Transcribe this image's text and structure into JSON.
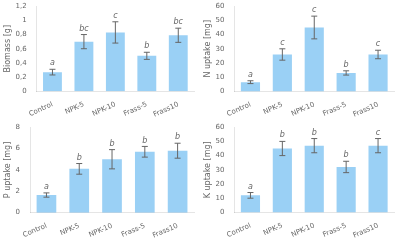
{
  "chart_data": [
    {
      "type": "bar",
      "categories": [
        "Control",
        "NPK-5",
        "NPK-10",
        "Frass-5",
        "Frass10"
      ],
      "values": [
        0.27,
        0.7,
        0.83,
        0.5,
        0.79
      ],
      "errors": [
        0.04,
        0.1,
        0.15,
        0.05,
        0.1
      ],
      "letters": [
        "a",
        "bc",
        "c",
        "b",
        "bc"
      ],
      "ylabel": "Biomass [g]",
      "ylim": [
        0,
        1.2
      ],
      "yticks": [
        0,
        {
          "value": 0.2,
          "label": "0,2"
        },
        {
          "value": 0.4,
          "label": "0,4"
        },
        {
          "value": 0.6,
          "label": "0,6"
        },
        {
          "value": 0.8,
          "label": "0,8"
        },
        1,
        {
          "value": 1.2,
          "label": "1,2"
        }
      ],
      "grid": false
    },
    {
      "type": "bar",
      "categories": [
        "Control",
        "NPK-5",
        "NPK-10",
        "Frass-5",
        "Frass10"
      ],
      "values": [
        6.5,
        26.0,
        45.0,
        13.0,
        26.0
      ],
      "errors": [
        1.0,
        4.0,
        8.0,
        1.5,
        3.0
      ],
      "letters": [
        "a",
        "c",
        "c",
        "b",
        "c"
      ],
      "ylabel": "N uptake [mg]",
      "ylim": [
        0,
        60
      ],
      "yticks": [
        0,
        10,
        20,
        30,
        40,
        50,
        60
      ],
      "grid": false
    },
    {
      "type": "bar",
      "categories": [
        "Control",
        "NPK-5",
        "NPK-10",
        "Frass-5",
        "Frass10"
      ],
      "values": [
        1.65,
        4.1,
        5.0,
        5.7,
        5.8
      ],
      "errors": [
        0.2,
        0.5,
        0.9,
        0.5,
        0.7
      ],
      "letters": [
        "a",
        "b",
        "b",
        "b",
        "b"
      ],
      "ylabel": "P uptake [mg]",
      "ylim": [
        0,
        8
      ],
      "yticks": [
        0,
        2,
        4,
        6,
        8
      ],
      "grid": false
    },
    {
      "type": "bar",
      "categories": [
        "Control",
        "NPK-5",
        "NPK-10",
        "Frass-5",
        "Frass10"
      ],
      "values": [
        12.0,
        45.0,
        47.0,
        32.0,
        47.0
      ],
      "errors": [
        2.0,
        5.0,
        5.0,
        4.0,
        5.0
      ],
      "letters": [
        "a",
        "b",
        "b",
        "b",
        "c"
      ],
      "ylabel": "K uptake [mg]",
      "ylim": [
        0,
        60
      ],
      "yticks": [
        0,
        10,
        20,
        30,
        40,
        50,
        60
      ],
      "grid": false
    }
  ]
}
